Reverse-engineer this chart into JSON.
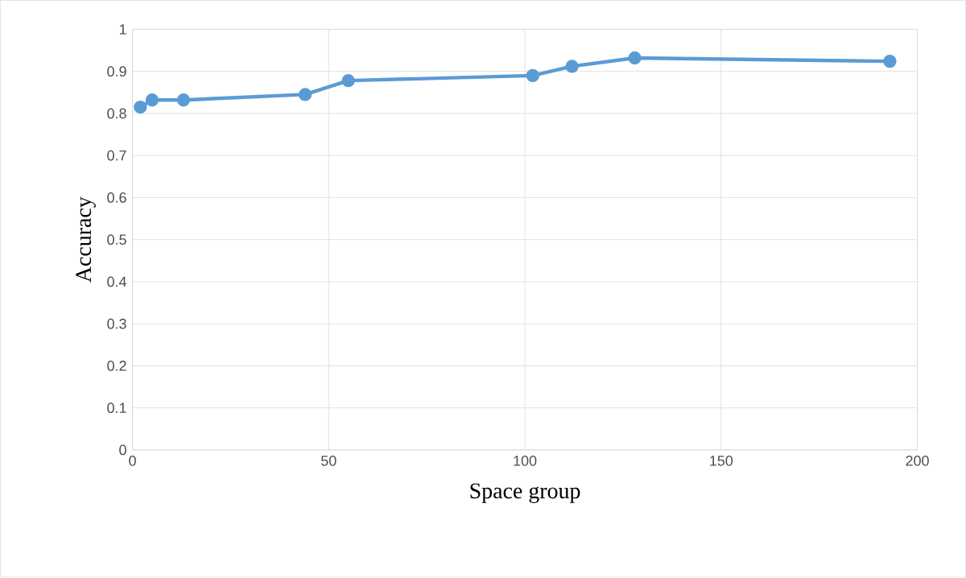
{
  "chart_data": {
    "type": "line",
    "xlabel": "Space group",
    "ylabel": "Accuracy",
    "x": [
      2,
      5,
      13,
      44,
      55,
      102,
      112,
      128,
      193
    ],
    "series": [
      {
        "color": "#5b9bd5",
        "values": [
          0.815,
          0.832,
          0.832,
          0.845,
          0.878,
          0.89,
          0.912,
          0.932,
          0.924
        ]
      }
    ],
    "xlim": [
      0,
      200
    ],
    "xticks": [
      0,
      50,
      100,
      150,
      200
    ],
    "ylim": [
      0,
      1
    ],
    "yticks": [
      0,
      0.1,
      0.2,
      0.3,
      0.4,
      0.5,
      0.6,
      0.7,
      0.8,
      0.9,
      1
    ],
    "grid": true,
    "marker": "circle",
    "line_style": "solid"
  }
}
